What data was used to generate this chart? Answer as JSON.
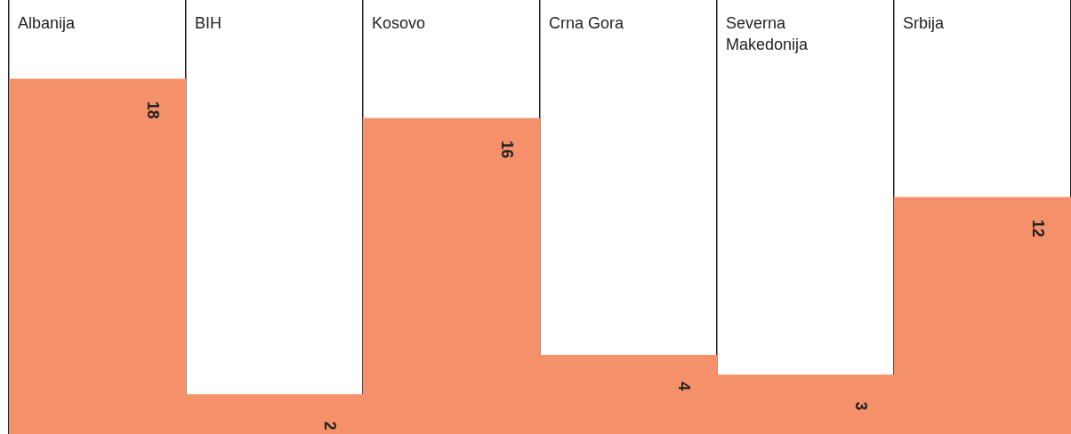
{
  "chart_data": {
    "type": "bar",
    "categories": [
      "Albanija",
      "BIH",
      "Kosovo",
      "Crna Gora",
      "Severna Makedonija",
      "Srbija"
    ],
    "values": [
      18,
      2,
      16,
      4,
      3,
      12
    ],
    "color": "#f4916a",
    "ylim": [
      0,
      22
    ],
    "grid": "x",
    "data_labels": true,
    "legend": false
  }
}
